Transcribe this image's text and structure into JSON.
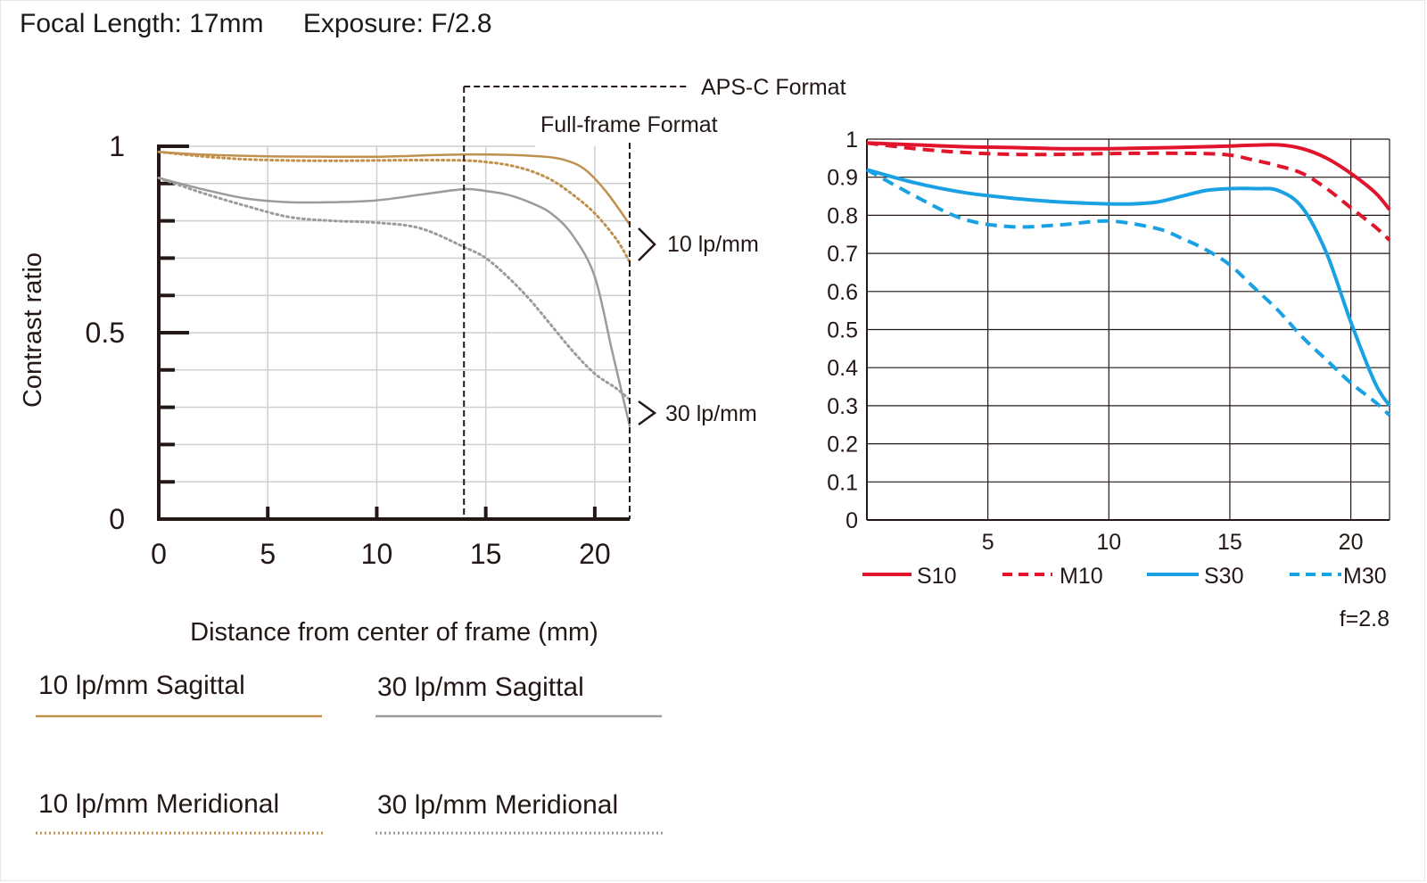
{
  "header": {
    "focal_length": "Focal Length: 17mm",
    "exposure": "Exposure: F/2.8"
  },
  "colors": {
    "s10_left": "#c0904f",
    "s30_left": "#9b9b9b",
    "s10_right": "#e0142b",
    "s30_right": "#1aa1e4",
    "grid": "#cfcfcf",
    "axis": "#231815"
  },
  "chart_data": [
    {
      "type": "line",
      "title": "",
      "xlabel": "Distance from center of frame (mm)",
      "ylabel": "Contrast ratio",
      "xlim": [
        0,
        21.6
      ],
      "ylim": [
        0,
        1
      ],
      "x_ticks": [
        "0",
        "5",
        "10",
        "15",
        "20"
      ],
      "y_ticks": [
        "0",
        "0.5",
        "1"
      ],
      "annotations": {
        "apsc": "APS-C Format",
        "fullframe": "Full-frame Format",
        "apsc_x": 14.0,
        "fullframe_x": 21.6,
        "lp10": "10 lp/mm",
        "lp30": "30 lp/mm"
      },
      "legend": {
        "s10": "10 lp/mm Sagittal",
        "s30": "30 lp/mm Sagittal",
        "m10": "10 lp/mm Meridional",
        "m30": "30 lp/mm Meridional"
      },
      "series": [
        {
          "name": "10 lp/mm Sagittal",
          "style": "solid",
          "color": "#c0904f",
          "x": [
            0,
            2,
            5,
            8,
            10,
            12,
            14,
            16,
            17.5,
            18.5,
            19.5,
            20.5,
            21.6
          ],
          "y": [
            0.985,
            0.978,
            0.973,
            0.972,
            0.972,
            0.975,
            0.978,
            0.977,
            0.973,
            0.965,
            0.94,
            0.88,
            0.79
          ]
        },
        {
          "name": "10 lp/mm Meridional",
          "style": "dotted",
          "color": "#c0904f",
          "x": [
            0,
            2,
            4,
            6,
            8,
            10,
            12,
            14,
            15,
            16,
            17,
            18,
            19,
            20,
            21,
            21.6
          ],
          "y": [
            0.985,
            0.973,
            0.965,
            0.962,
            0.961,
            0.962,
            0.963,
            0.962,
            0.958,
            0.95,
            0.935,
            0.91,
            0.87,
            0.82,
            0.75,
            0.69
          ]
        },
        {
          "name": "30 lp/mm Sagittal",
          "style": "solid",
          "color": "#9b9b9b",
          "x": [
            0,
            2,
            4,
            6,
            8,
            10,
            12,
            14,
            15,
            16,
            17,
            18,
            19,
            20,
            20.8,
            21.6
          ],
          "y": [
            0.915,
            0.885,
            0.86,
            0.85,
            0.85,
            0.855,
            0.87,
            0.885,
            0.88,
            0.87,
            0.85,
            0.82,
            0.76,
            0.65,
            0.45,
            0.25
          ]
        },
        {
          "name": "30 lp/mm Meridional",
          "style": "dotted",
          "color": "#9b9b9b",
          "x": [
            0,
            2,
            4,
            6,
            8,
            10,
            12,
            14,
            15,
            16,
            17,
            18,
            19,
            20,
            21,
            21.6
          ],
          "y": [
            0.915,
            0.875,
            0.84,
            0.81,
            0.8,
            0.795,
            0.78,
            0.73,
            0.7,
            0.65,
            0.59,
            0.52,
            0.45,
            0.39,
            0.35,
            0.32
          ]
        }
      ]
    },
    {
      "type": "line",
      "title": "",
      "xlabel": "",
      "ylabel": "",
      "xlim": [
        0,
        21.6
      ],
      "ylim": [
        0,
        1
      ],
      "x_ticks": [
        "5",
        "10",
        "15",
        "20"
      ],
      "y_ticks": [
        "0",
        "0.1",
        "0.2",
        "0.3",
        "0.4",
        "0.5",
        "0.6",
        "0.7",
        "0.8",
        "0.9",
        "1"
      ],
      "note": "f=2.8",
      "series": [
        {
          "name": "S10",
          "style": "solid",
          "color": "#e0142b",
          "x": [
            0,
            2,
            4,
            6,
            8,
            10,
            12,
            14,
            15,
            16,
            17,
            18,
            19,
            20,
            21,
            21.6
          ],
          "y": [
            0.99,
            0.985,
            0.98,
            0.978,
            0.975,
            0.975,
            0.977,
            0.98,
            0.982,
            0.984,
            0.985,
            0.975,
            0.95,
            0.91,
            0.86,
            0.815
          ]
        },
        {
          "name": "M10",
          "style": "dashed",
          "color": "#e0142b",
          "x": [
            0,
            2,
            4,
            6,
            8,
            10,
            12,
            14,
            15,
            16,
            17,
            18,
            19,
            20,
            21,
            21.6
          ],
          "y": [
            0.99,
            0.975,
            0.965,
            0.96,
            0.96,
            0.962,
            0.963,
            0.962,
            0.958,
            0.945,
            0.93,
            0.91,
            0.87,
            0.82,
            0.77,
            0.735
          ]
        },
        {
          "name": "S30",
          "style": "solid",
          "color": "#1aa1e4",
          "x": [
            0,
            2,
            4,
            6,
            8,
            10,
            11,
            12,
            13,
            14,
            15,
            16,
            17,
            18,
            19,
            20,
            21,
            21.6
          ],
          "y": [
            0.92,
            0.885,
            0.86,
            0.845,
            0.835,
            0.83,
            0.83,
            0.835,
            0.85,
            0.865,
            0.87,
            0.87,
            0.865,
            0.82,
            0.7,
            0.52,
            0.36,
            0.3
          ]
        },
        {
          "name": "M30",
          "style": "dashed",
          "color": "#1aa1e4",
          "x": [
            0,
            2,
            4,
            6,
            8,
            10,
            12,
            13,
            14,
            15,
            16,
            17,
            18,
            19,
            20,
            21,
            21.6
          ],
          "y": [
            0.92,
            0.85,
            0.79,
            0.77,
            0.775,
            0.785,
            0.765,
            0.74,
            0.71,
            0.67,
            0.61,
            0.55,
            0.48,
            0.42,
            0.36,
            0.31,
            0.275
          ]
        }
      ]
    }
  ]
}
